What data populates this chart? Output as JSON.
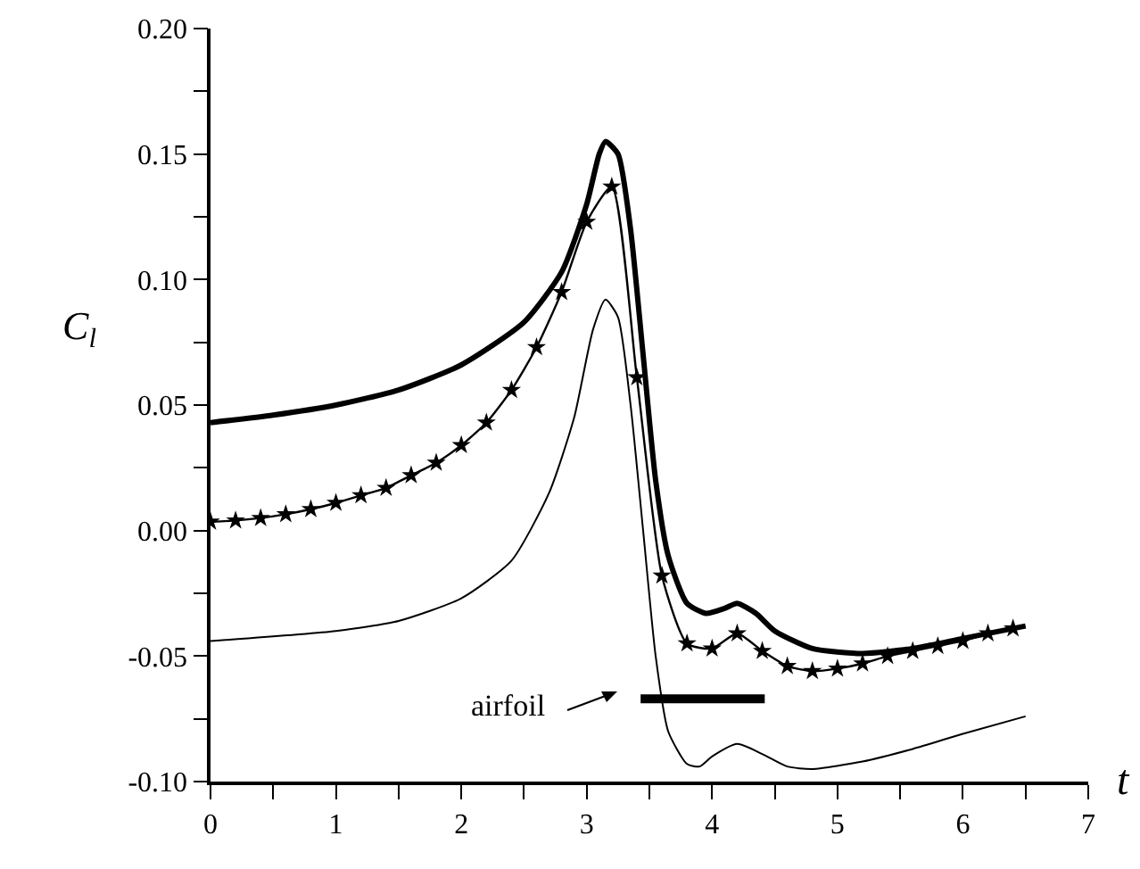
{
  "chart_data": {
    "type": "line",
    "xlabel": "t",
    "ylabel": "C$_{l}$",
    "xlim": [
      0,
      7
    ],
    "ylim": [
      -0.1,
      0.2
    ],
    "xticks": [
      0,
      {
        "value": 0.5,
        "label": null
      },
      1,
      {
        "value": 1.5,
        "label": null
      },
      2,
      {
        "value": 2.5,
        "label": null
      },
      3,
      {
        "value": 3.5,
        "label": null
      },
      4,
      {
        "value": 4.5,
        "label": null
      },
      5,
      {
        "value": 5.5,
        "label": null
      },
      6,
      {
        "value": 6.5,
        "label": null
      },
      7
    ],
    "yticks": [
      {
        "value": -0.1,
        "label": "-0.10"
      },
      {
        "value": -0.075,
        "label": null
      },
      {
        "value": -0.05,
        "label": "-0.05"
      },
      {
        "value": -0.025,
        "label": null
      },
      {
        "value": 0,
        "label": "0.00"
      },
      {
        "value": 0.025,
        "label": null
      },
      {
        "value": 0.05,
        "label": "0.05"
      },
      {
        "value": 0.075,
        "label": null
      },
      {
        "value": 0.1,
        "label": "0.10"
      },
      {
        "value": 0.125,
        "label": null
      },
      {
        "value": 0.15,
        "label": "0.15"
      },
      {
        "value": 0.175,
        "label": null
      },
      {
        "value": 0.2,
        "label": "0.20"
      }
    ],
    "grid": false,
    "annotations": [
      "airfoil"
    ],
    "series": [
      {
        "color": "#000000",
        "marker": "none",
        "x": [
          0,
          0.5,
          1,
          1.5,
          2,
          2.5,
          2.8,
          3.0,
          3.1,
          3.15,
          3.25,
          3.35,
          3.45,
          3.55,
          3.65,
          3.8,
          3.95,
          4.1,
          4.2,
          4.35,
          4.5,
          4.8,
          5.2,
          5.6,
          6.0,
          6.5
        ],
        "values": [
          0.043,
          0.046,
          0.05,
          0.056,
          0.066,
          0.083,
          0.103,
          0.13,
          0.15,
          0.155,
          0.15,
          0.12,
          0.07,
          0.02,
          -0.01,
          -0.029,
          -0.033,
          -0.031,
          -0.029,
          -0.033,
          -0.04,
          -0.047,
          -0.049,
          -0.047,
          -0.043,
          -0.038
        ]
      },
      {
        "color": "#000000",
        "marker": "star",
        "x": [
          0,
          0.2,
          0.4,
          0.6,
          0.8,
          1.0,
          1.2,
          1.4,
          1.6,
          1.8,
          2.0,
          2.2,
          2.4,
          2.6,
          2.8,
          3.0,
          3.2,
          3.4,
          3.6,
          3.8,
          4.0,
          4.2,
          4.4,
          4.6,
          4.8,
          5.0,
          5.2,
          5.4,
          5.6,
          5.8,
          6.0,
          6.2,
          6.4
        ],
        "values": [
          0.0035,
          0.004,
          0.005,
          0.0065,
          0.0085,
          0.011,
          0.014,
          0.017,
          0.022,
          0.027,
          0.034,
          0.043,
          0.056,
          0.073,
          0.095,
          0.123,
          0.137,
          0.061,
          -0.018,
          -0.045,
          -0.047,
          -0.041,
          -0.048,
          -0.054,
          -0.056,
          -0.055,
          -0.053,
          -0.05,
          -0.048,
          -0.046,
          -0.044,
          -0.041,
          -0.039
        ]
      },
      {
        "color": "#000000",
        "marker": "none",
        "x": [
          0,
          1,
          1.5,
          2,
          2.4,
          2.7,
          2.9,
          3.05,
          3.15,
          3.25,
          3.35,
          3.45,
          3.55,
          3.65,
          3.8,
          3.9,
          4.0,
          4.2,
          4.4,
          4.6,
          4.8,
          5.2,
          5.6,
          6.0,
          6.5
        ],
        "values": [
          -0.044,
          -0.04,
          -0.036,
          -0.027,
          -0.012,
          0.015,
          0.045,
          0.08,
          0.092,
          0.085,
          0.05,
          0.0,
          -0.05,
          -0.08,
          -0.093,
          -0.094,
          -0.09,
          -0.085,
          -0.089,
          -0.094,
          -0.095,
          -0.092,
          -0.087,
          -0.081,
          -0.074
        ]
      },
      {
        "color": "#000000",
        "marker": "none",
        "x": [
          3.43,
          4.42
        ],
        "values": [
          -0.067,
          -0.067
        ]
      }
    ]
  }
}
